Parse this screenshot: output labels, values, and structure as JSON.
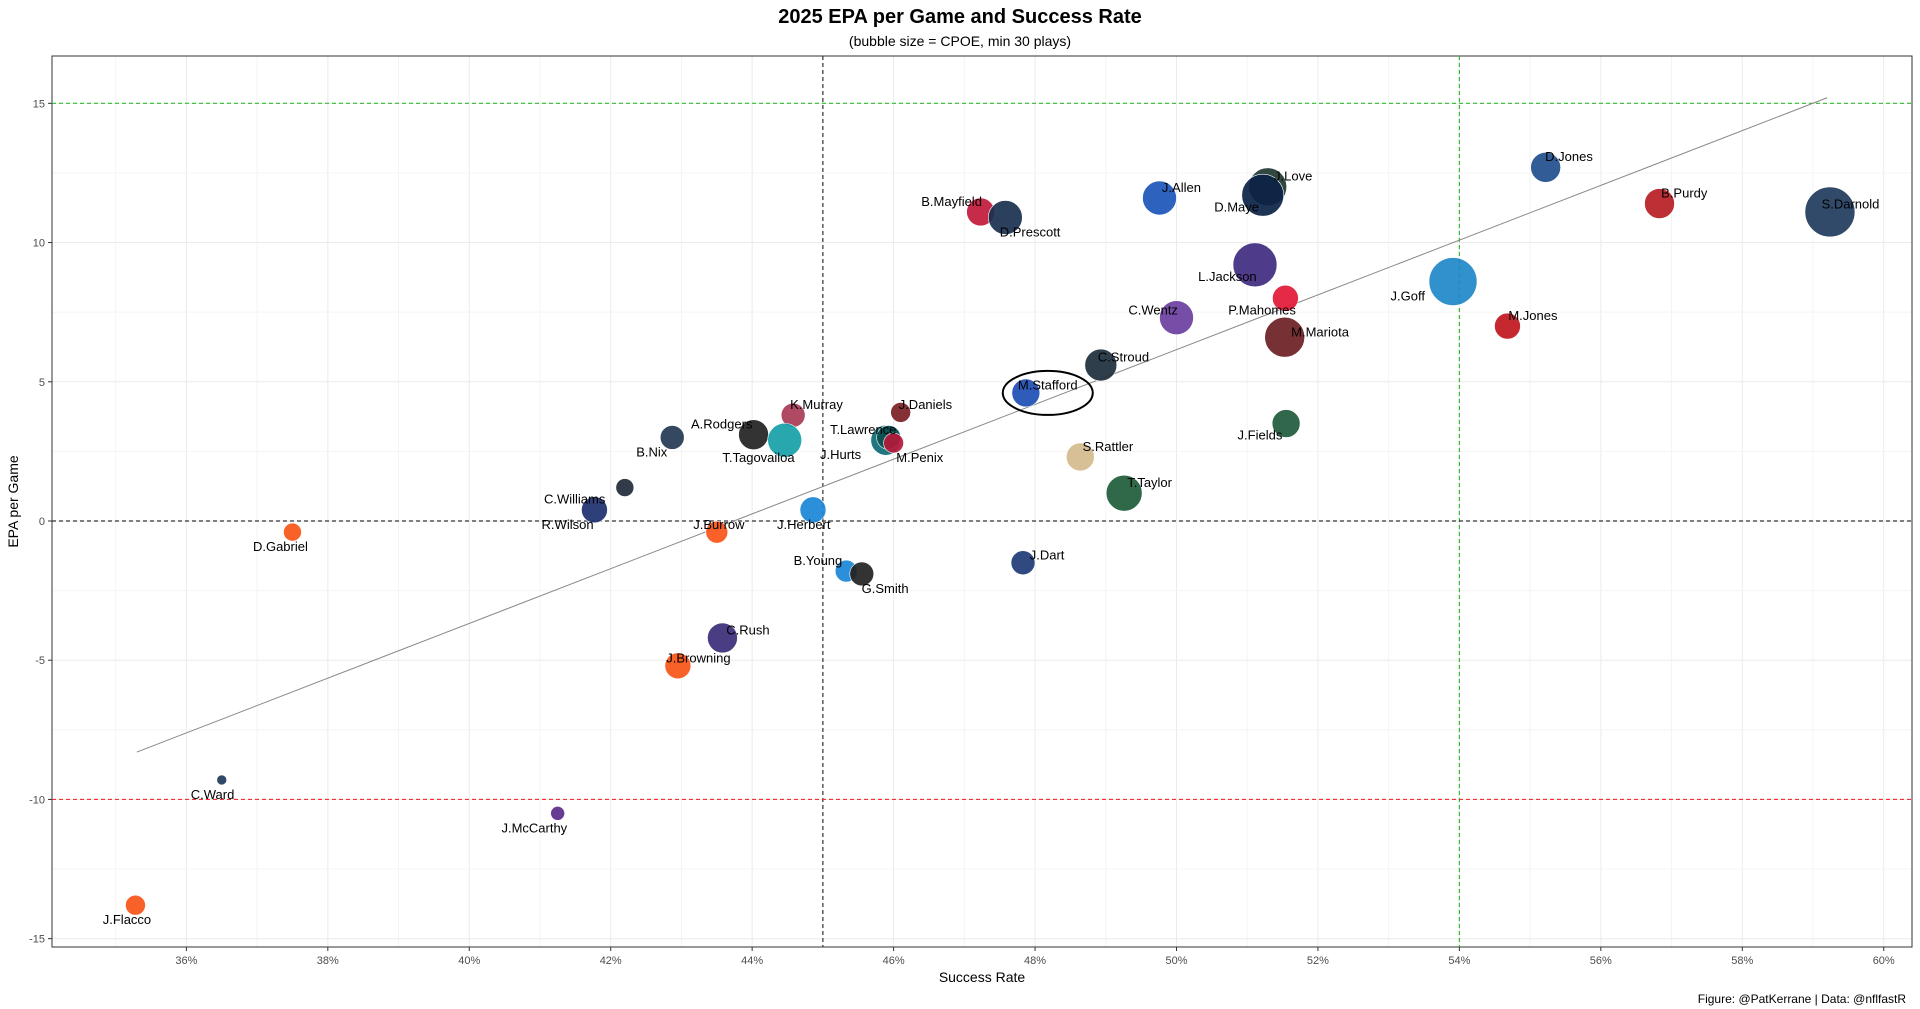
{
  "chart_data": {
    "type": "scatter",
    "title": "2025 EPA per Game and Success Rate",
    "subtitle": "(bubble size = CPOE, min 30 plays)",
    "xlabel": "Success Rate",
    "ylabel": "EPA per Game",
    "caption": "Figure: @PatKerrane | Data: @nflfastR",
    "xlim": [
      0.341,
      0.604
    ],
    "ylim": [
      -15.3,
      16.7
    ],
    "x_ticks": [
      0.36,
      0.38,
      0.4,
      0.42,
      0.44,
      0.46,
      0.48,
      0.5,
      0.52,
      0.54,
      0.56,
      0.58,
      0.6
    ],
    "x_tick_labels": [
      "36%",
      "38%",
      "40%",
      "42%",
      "44%",
      "46%",
      "48%",
      "50%",
      "52%",
      "54%",
      "56%",
      "58%",
      "60%"
    ],
    "y_ticks": [
      -15,
      -10,
      -5,
      0,
      5,
      10,
      15
    ],
    "y_tick_labels": [
      "-15",
      "-10",
      "-5",
      "0",
      "5",
      "10",
      "15"
    ],
    "grid": true,
    "reference_lines": [
      {
        "axis": "x",
        "value": 0.45,
        "color": "#333333",
        "dash": true
      },
      {
        "axis": "x",
        "value": 0.54,
        "color": "#33bb33",
        "dash": true
      },
      {
        "axis": "y",
        "value": 0,
        "color": "#333333",
        "dash": true
      },
      {
        "axis": "y",
        "value": 15,
        "color": "#33bb33",
        "dash": true
      },
      {
        "axis": "y",
        "value": -10,
        "color": "#ee3333",
        "dash": true
      }
    ],
    "trend_line": {
      "x": [
        0.353,
        0.592
      ],
      "y": [
        -8.3,
        15.2
      ],
      "color": "#888888"
    },
    "highlight": {
      "x": 0.4818,
      "y": 4.6
    },
    "points": [
      {
        "name": "S.Darnold",
        "x": 0.5924,
        "y": 11.1,
        "size": 25,
        "color": "#1f3b5c"
      },
      {
        "name": "D.Jones",
        "x": 0.5522,
        "y": 12.7,
        "size": 15,
        "color": "#1f4e8c"
      },
      {
        "name": "B.Purdy",
        "x": 0.5683,
        "y": 11.4,
        "size": 15,
        "color": "#b91c24"
      },
      {
        "name": "J.Goff",
        "x": 0.5391,
        "y": 8.6,
        "size": 24,
        "color": "#1e88c8"
      },
      {
        "name": "M.Jones",
        "x": 0.5468,
        "y": 7.0,
        "size": 13,
        "color": "#c0161d"
      },
      {
        "name": "J.Love",
        "x": 0.5129,
        "y": 12.0,
        "size": 19,
        "color": "#203731"
      },
      {
        "name": "D.Maye",
        "x": 0.5122,
        "y": 11.7,
        "size": 21,
        "color": "#0b2347"
      },
      {
        "name": "J.Allen",
        "x": 0.4976,
        "y": 11.6,
        "size": 17,
        "color": "#1b56b8"
      },
      {
        "name": "L.Jackson",
        "x": 0.5111,
        "y": 9.2,
        "size": 22,
        "color": "#3f2a80"
      },
      {
        "name": "P.Mahomes",
        "x": 0.5154,
        "y": 8.0,
        "size": 13,
        "color": "#e31837"
      },
      {
        "name": "M.Mariota",
        "x": 0.5153,
        "y": 6.6,
        "size": 20,
        "color": "#6b1f24"
      },
      {
        "name": "C.Wentz",
        "x": 0.5,
        "y": 7.3,
        "size": 17,
        "color": "#6a3fa0"
      },
      {
        "name": "B.Mayfield",
        "x": 0.4723,
        "y": 11.1,
        "size": 14,
        "color": "#c2193b"
      },
      {
        "name": "D.Prescott",
        "x": 0.4758,
        "y": 10.9,
        "size": 17,
        "color": "#18304f"
      },
      {
        "name": "C.Stroud",
        "x": 0.4893,
        "y": 5.6,
        "size": 16,
        "color": "#1c2f3c"
      },
      {
        "name": "M.Stafford",
        "x": 0.4787,
        "y": 4.6,
        "size": 14,
        "color": "#1d4db4"
      },
      {
        "name": "J.Fields",
        "x": 0.5155,
        "y": 3.5,
        "size": 14,
        "color": "#1f5a3c"
      },
      {
        "name": "S.Rattler",
        "x": 0.4864,
        "y": 2.3,
        "size": 14,
        "color": "#d4bb8c"
      },
      {
        "name": "T.Taylor",
        "x": 0.4926,
        "y": 1.0,
        "size": 18,
        "color": "#1d5c3a"
      },
      {
        "name": "J.Daniels",
        "x": 0.461,
        "y": 3.9,
        "size": 10,
        "color": "#7a1f24"
      },
      {
        "name": "T.Lawrence",
        "x": 0.4589,
        "y": 2.9,
        "size": 15,
        "color": "#0e6b74"
      },
      {
        "name": "J.Hurts",
        "x": 0.4593,
        "y": 3.0,
        "size": 12,
        "color": "#0b4e50"
      },
      {
        "name": "M.Penix",
        "x": 0.46,
        "y": 2.8,
        "size": 10,
        "color": "#b51a3c"
      },
      {
        "name": "K.Murray",
        "x": 0.4458,
        "y": 3.8,
        "size": 12,
        "color": "#a83b55"
      },
      {
        "name": "A.Rodgers",
        "x": 0.4402,
        "y": 3.1,
        "size": 15,
        "color": "#222222"
      },
      {
        "name": "T.Tagovailoa",
        "x": 0.4446,
        "y": 2.9,
        "size": 17,
        "color": "#16a0a8"
      },
      {
        "name": "B.Nix",
        "x": 0.4287,
        "y": 3.0,
        "size": 12,
        "color": "#233954"
      },
      {
        "name": "C.Williams",
        "x": 0.422,
        "y": 1.2,
        "size": 9,
        "color": "#202a3a"
      },
      {
        "name": "R.Wilson",
        "x": 0.4177,
        "y": 0.4,
        "size": 13,
        "color": "#1c2f6f"
      },
      {
        "name": "J.Herbert",
        "x": 0.4486,
        "y": 0.4,
        "size": 13,
        "color": "#1a86d6"
      },
      {
        "name": "J.Burrow",
        "x": 0.435,
        "y": -0.4,
        "size": 11,
        "color": "#f75416"
      },
      {
        "name": "D.Gabriel",
        "x": 0.375,
        "y": -0.4,
        "size": 9,
        "color": "#f75416"
      },
      {
        "name": "J.Dart",
        "x": 0.4783,
        "y": -1.5,
        "size": 12,
        "color": "#1e3a76"
      },
      {
        "name": "B.Young",
        "x": 0.4533,
        "y": -1.8,
        "size": 11,
        "color": "#1a86d6"
      },
      {
        "name": "G.Smith",
        "x": 0.4555,
        "y": -1.9,
        "size": 12,
        "color": "#222222"
      },
      {
        "name": "C.Rush",
        "x": 0.4358,
        "y": -4.2,
        "size": 15,
        "color": "#3b2d7a"
      },
      {
        "name": "J.Browning",
        "x": 0.4295,
        "y": -5.2,
        "size": 13,
        "color": "#f75416"
      },
      {
        "name": "C.Ward",
        "x": 0.365,
        "y": -9.3,
        "size": 5,
        "color": "#1e3a5c"
      },
      {
        "name": "J.McCarthy",
        "x": 0.4125,
        "y": -10.5,
        "size": 7,
        "color": "#5a2d8a"
      },
      {
        "name": "J.Flacco",
        "x": 0.3528,
        "y": -13.8,
        "size": 10,
        "color": "#f75416"
      }
    ],
    "labels": [
      {
        "text": "S.Darnold",
        "x": 0.5953,
        "y": 11.4
      },
      {
        "text": "D.Jones",
        "x": 0.5555,
        "y": 13.1
      },
      {
        "text": "B.Purdy",
        "x": 0.5718,
        "y": 11.8
      },
      {
        "text": "J.Goff",
        "x": 0.5327,
        "y": 8.1
      },
      {
        "text": "M.Jones",
        "x": 0.5504,
        "y": 7.4
      },
      {
        "text": "J.Love",
        "x": 0.5165,
        "y": 12.4
      },
      {
        "text": "D.Maye",
        "x": 0.5085,
        "y": 11.3
      },
      {
        "text": "J.Allen",
        "x": 0.5007,
        "y": 12.0
      },
      {
        "text": "L.Jackson",
        "x": 0.5072,
        "y": 8.8
      },
      {
        "text": "P.Mahomes",
        "x": 0.5121,
        "y": 7.6
      },
      {
        "text": "M.Mariota",
        "x": 0.5203,
        "y": 6.8
      },
      {
        "text": "C.Wentz",
        "x": 0.4967,
        "y": 7.6
      },
      {
        "text": "B.Mayfield",
        "x": 0.4682,
        "y": 11.5
      },
      {
        "text": "D.Prescott",
        "x": 0.4793,
        "y": 10.4
      },
      {
        "text": "C.Stroud",
        "x": 0.4925,
        "y": 5.9
      },
      {
        "text": "M.Stafford",
        "x": 0.4818,
        "y": 4.9
      },
      {
        "text": "J.Fields",
        "x": 0.5118,
        "y": 3.1
      },
      {
        "text": "S.Rattler",
        "x": 0.4903,
        "y": 2.7
      },
      {
        "text": "T.Taylor",
        "x": 0.4962,
        "y": 1.4
      },
      {
        "text": "J.Daniels",
        "x": 0.4645,
        "y": 4.2
      },
      {
        "text": "T.Lawrence",
        "x": 0.4557,
        "y": 3.3
      },
      {
        "text": "J.Hurts",
        "x": 0.4525,
        "y": 2.4
      },
      {
        "text": "M.Penix",
        "x": 0.4637,
        "y": 2.3
      },
      {
        "text": "K.Murray",
        "x": 0.4491,
        "y": 4.2
      },
      {
        "text": "A.Rodgers",
        "x": 0.4357,
        "y": 3.5
      },
      {
        "text": "T.Tagovailoa",
        "x": 0.4409,
        "y": 2.3
      },
      {
        "text": "B.Nix",
        "x": 0.4258,
        "y": 2.5
      },
      {
        "text": "C.Williams",
        "x": 0.4149,
        "y": 0.8
      },
      {
        "text": "R.Wilson",
        "x": 0.4139,
        "y": -0.1
      },
      {
        "text": "J.Herbert",
        "x": 0.4473,
        "y": -0.1
      },
      {
        "text": "J.Burrow",
        "x": 0.4353,
        "y": -0.1
      },
      {
        "text": "D.Gabriel",
        "x": 0.3733,
        "y": -0.9
      },
      {
        "text": "J.Dart",
        "x": 0.4817,
        "y": -1.2
      },
      {
        "text": "B.Young",
        "x": 0.4493,
        "y": -1.4
      },
      {
        "text": "G.Smith",
        "x": 0.4588,
        "y": -2.4
      },
      {
        "text": "C.Rush",
        "x": 0.4394,
        "y": -3.9
      },
      {
        "text": "J.Browning",
        "x": 0.4324,
        "y": -4.9
      },
      {
        "text": "C.Ward",
        "x": 0.3637,
        "y": -9.8
      },
      {
        "text": "J.McCarthy",
        "x": 0.4092,
        "y": -11.0
      },
      {
        "text": "J.Flacco",
        "x": 0.3516,
        "y": -14.3
      }
    ]
  }
}
